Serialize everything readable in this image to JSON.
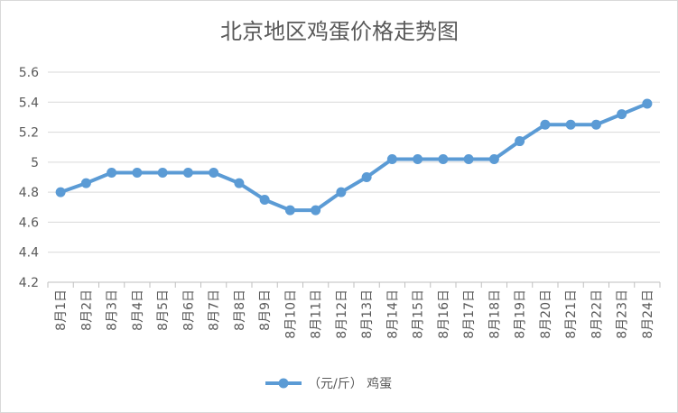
{
  "chart_data": {
    "type": "line",
    "title": "北京地区鸡蛋价格走势图",
    "categories": [
      "8月1日",
      "8月2日",
      "8月3日",
      "8月4日",
      "8月5日",
      "8月6日",
      "8月7日",
      "8月8日",
      "8月9日",
      "8月10日",
      "8月11日",
      "8月12日",
      "8月13日",
      "8月14日",
      "8月15日",
      "8月16日",
      "8月17日",
      "8月18日",
      "8月19日",
      "8月20日",
      "8月21日",
      "8月22日",
      "8月23日",
      "8月24日"
    ],
    "series": [
      {
        "name": "（元/斤） 鸡蛋",
        "color": "#5b9bd5",
        "values": [
          4.8,
          4.86,
          4.93,
          4.93,
          4.93,
          4.93,
          4.93,
          4.86,
          4.75,
          4.68,
          4.68,
          4.8,
          4.9,
          5.02,
          5.02,
          5.02,
          5.02,
          5.02,
          5.14,
          5.25,
          5.25,
          5.25,
          5.32,
          5.39
        ]
      }
    ],
    "ylim": [
      4.2,
      5.6
    ],
    "yticks": [
      "4.2",
      "4.4",
      "4.6",
      "4.8",
      "5",
      "5.2",
      "5.4",
      "5.6"
    ],
    "grid": true,
    "legend": "bottom"
  }
}
